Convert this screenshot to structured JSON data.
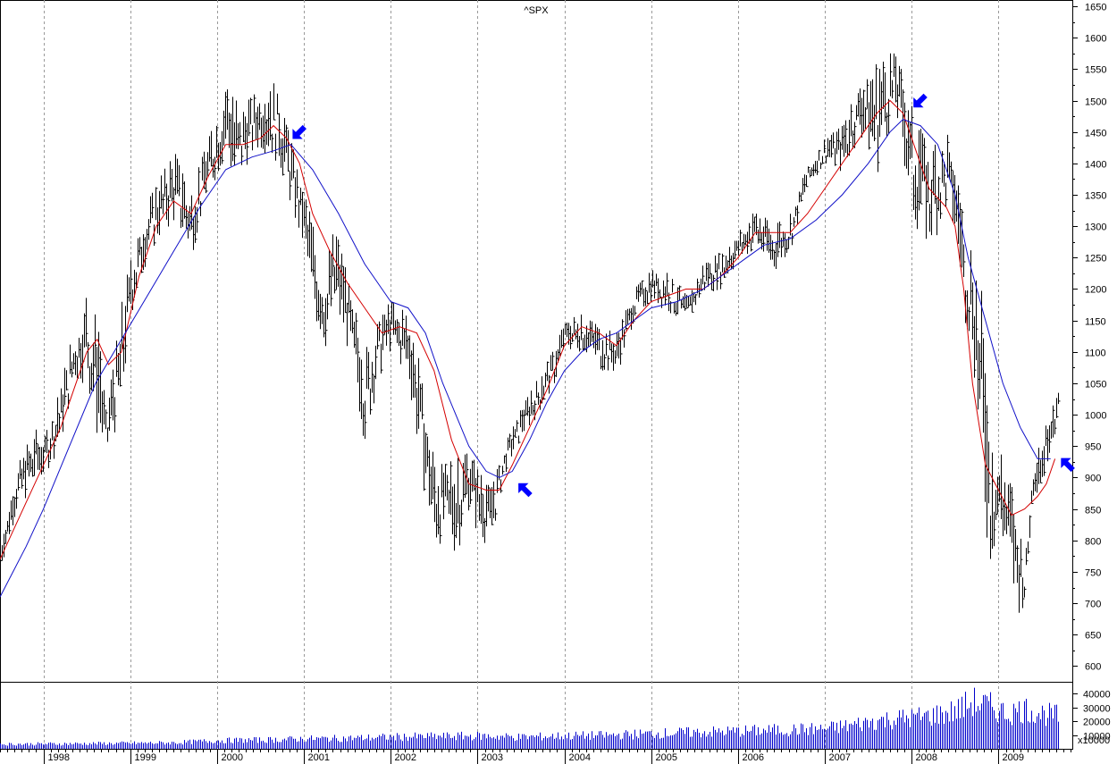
{
  "chart_data": [
    {
      "type": "ohlc",
      "title": "^SPX",
      "x_axis": {
        "tick_labels": [
          "1998",
          "1999",
          "2000",
          "2001",
          "2002",
          "2003",
          "2004",
          "2005",
          "2006",
          "2007",
          "2008",
          "2009"
        ],
        "xlim": [
          1997.5,
          2009.85
        ]
      },
      "y_axis": {
        "tick_labels": [
          "600",
          "650",
          "700",
          "750",
          "800",
          "850",
          "900",
          "950",
          "1000",
          "1050",
          "1100",
          "1150",
          "1200",
          "1250",
          "1300",
          "1350",
          "1400",
          "1450",
          "1500",
          "1550",
          "1600",
          "1650"
        ],
        "ylim": [
          575,
          1660
        ],
        "position": "right"
      },
      "grid": true,
      "series": [
        {
          "kind": "weekly-high-low-bars",
          "color": "#000000",
          "x": [
            1997.5,
            1997.7,
            1997.9,
            1998.0,
            1998.2,
            1998.35,
            1998.5,
            1998.62,
            1998.72,
            1998.9,
            1999.0,
            1999.2,
            1999.35,
            1999.5,
            1999.7,
            1999.85,
            2000.0,
            2000.1,
            2000.2,
            2000.35,
            2000.5,
            2000.7,
            2000.8,
            2000.9,
            2001.0,
            2001.1,
            2001.25,
            2001.35,
            2001.5,
            2001.7,
            2001.85,
            2002.0,
            2002.2,
            2002.35,
            2002.5,
            2002.6,
            2002.75,
            2002.9,
            2003.0,
            2003.15,
            2003.3,
            2003.5,
            2003.7,
            2003.9,
            2004.0,
            2004.2,
            2004.4,
            2004.6,
            2004.8,
            2005.0,
            2005.2,
            2005.4,
            2005.6,
            2005.8,
            2006.0,
            2006.2,
            2006.4,
            2006.6,
            2006.8,
            2007.0,
            2007.2,
            2007.4,
            2007.6,
            2007.8,
            2007.9,
            2008.0,
            2008.2,
            2008.4,
            2008.5,
            2008.6,
            2008.7,
            2008.8,
            2008.9,
            2009.0,
            2009.1,
            2009.2,
            2009.3,
            2009.4,
            2009.5,
            2009.6,
            2009.7
          ],
          "high": [
            800,
            920,
            980,
            960,
            1050,
            1140,
            1190,
            1150,
            1000,
            1180,
            1250,
            1340,
            1380,
            1420,
            1360,
            1420,
            1480,
            1550,
            1500,
            1500,
            1520,
            1530,
            1460,
            1410,
            1360,
            1300,
            1240,
            1300,
            1220,
            1100,
            1160,
            1180,
            1160,
            1070,
            930,
            920,
            930,
            940,
            920,
            880,
            950,
            1010,
            1060,
            1110,
            1150,
            1160,
            1140,
            1130,
            1200,
            1230,
            1230,
            1190,
            1240,
            1260,
            1290,
            1330,
            1300,
            1320,
            1400,
            1440,
            1460,
            1530,
            1560,
            1580,
            1540,
            1490,
            1420,
            1450,
            1400,
            1300,
            1250,
            1200,
            1000,
            950,
            900,
            870,
            760,
            950,
            960,
            1020,
            1050
          ],
          "low": [
            750,
            850,
            880,
            900,
            950,
            1050,
            1050,
            950,
            930,
            1000,
            1150,
            1250,
            1280,
            1300,
            1250,
            1330,
            1380,
            1400,
            1350,
            1400,
            1420,
            1400,
            1350,
            1300,
            1250,
            1150,
            1100,
            1150,
            1100,
            950,
            1050,
            1100,
            1050,
            900,
            780,
            800,
            770,
            850,
            800,
            790,
            900,
            960,
            1000,
            1050,
            1100,
            1100,
            1070,
            1060,
            1150,
            1180,
            1160,
            1140,
            1190,
            1200,
            1240,
            1260,
            1220,
            1260,
            1360,
            1400,
            1380,
            1440,
            1380,
            1480,
            1400,
            1300,
            1260,
            1320,
            1270,
            1150,
            1100,
            850,
            750,
            800,
            760,
            670,
            700,
            870,
            880,
            950,
            980
          ]
        },
        {
          "kind": "moving-average-short",
          "color": "#d40000",
          "x": [
            1997.5,
            1997.8,
            1998.0,
            1998.2,
            1998.5,
            1998.62,
            1998.75,
            1998.9,
            1999.1,
            1999.3,
            1999.5,
            1999.7,
            1999.9,
            2000.1,
            2000.3,
            2000.5,
            2000.65,
            2000.8,
            2000.95,
            2001.1,
            2001.3,
            2001.5,
            2001.7,
            2001.9,
            2002.1,
            2002.3,
            2002.5,
            2002.7,
            2002.9,
            2003.1,
            2003.25,
            2003.4,
            2003.6,
            2003.8,
            2004.0,
            2004.2,
            2004.4,
            2004.6,
            2004.8,
            2005.0,
            2005.2,
            2005.4,
            2005.6,
            2005.8,
            2006.0,
            2006.2,
            2006.4,
            2006.6,
            2006.8,
            2007.0,
            2007.2,
            2007.4,
            2007.6,
            2007.75,
            2007.9,
            2008.05,
            2008.2,
            2008.4,
            2008.5,
            2008.6,
            2008.7,
            2008.85,
            2009.0,
            2009.15,
            2009.3,
            2009.45,
            2009.55,
            2009.65
          ],
          "y": [
            770,
            860,
            920,
            980,
            1100,
            1120,
            1080,
            1100,
            1220,
            1300,
            1340,
            1320,
            1380,
            1430,
            1430,
            1440,
            1460,
            1440,
            1400,
            1320,
            1260,
            1210,
            1170,
            1130,
            1140,
            1130,
            1070,
            960,
            890,
            880,
            880,
            920,
            980,
            1040,
            1110,
            1140,
            1130,
            1110,
            1150,
            1180,
            1190,
            1200,
            1200,
            1220,
            1250,
            1290,
            1290,
            1290,
            1320,
            1360,
            1400,
            1440,
            1480,
            1500,
            1480,
            1420,
            1360,
            1330,
            1300,
            1200,
            1050,
            920,
            880,
            840,
            850,
            870,
            890,
            930
          ]
        },
        {
          "kind": "moving-average-long",
          "color": "#1010c8",
          "x": [
            1997.5,
            1997.8,
            1998.0,
            1998.3,
            1998.6,
            1998.9,
            1999.2,
            1999.5,
            1999.8,
            2000.1,
            2000.4,
            2000.65,
            2000.85,
            2001.1,
            2001.4,
            2001.7,
            2002.0,
            2002.2,
            2002.4,
            2002.6,
            2002.9,
            2003.1,
            2003.25,
            2003.4,
            2003.6,
            2003.8,
            2004.0,
            2004.2,
            2004.4,
            2004.6,
            2004.8,
            2005.0,
            2005.3,
            2005.6,
            2005.9,
            2006.1,
            2006.3,
            2006.6,
            2006.9,
            2007.2,
            2007.5,
            2007.75,
            2007.9,
            2008.1,
            2008.3,
            2008.5,
            2008.65,
            2008.85,
            2009.05,
            2009.25,
            2009.45,
            2009.6
          ],
          "y": [
            710,
            790,
            850,
            950,
            1050,
            1120,
            1190,
            1260,
            1330,
            1390,
            1410,
            1420,
            1430,
            1390,
            1320,
            1240,
            1180,
            1170,
            1130,
            1050,
            950,
            910,
            900,
            910,
            960,
            1020,
            1070,
            1100,
            1120,
            1130,
            1150,
            1170,
            1180,
            1200,
            1230,
            1250,
            1270,
            1280,
            1310,
            1350,
            1400,
            1450,
            1470,
            1460,
            1430,
            1350,
            1250,
            1150,
            1050,
            980,
            930,
            930
          ]
        }
      ],
      "annotations": [
        {
          "kind": "arrow",
          "direction": "down-left",
          "x": 2000.95,
          "y": 1450,
          "color": "#0000ff"
        },
        {
          "kind": "arrow",
          "direction": "up-left",
          "x": 2003.55,
          "y": 880,
          "color": "#0000ff"
        },
        {
          "kind": "arrow",
          "direction": "down-left",
          "x": 2008.1,
          "y": 1500,
          "color": "#0000ff"
        },
        {
          "kind": "arrow",
          "direction": "up-left",
          "x": 2009.8,
          "y": 920,
          "color": "#0000ff"
        }
      ]
    },
    {
      "type": "bar",
      "name": "volume",
      "color": "#0000cc",
      "y_axis": {
        "tick_labels": [
          "10000",
          "20000",
          "30000",
          "40000"
        ],
        "ylim": [
          0,
          48000
        ],
        "multiplier_label": "x10000"
      },
      "x": [
        1997.5,
        1998.0,
        1998.5,
        1999.0,
        1999.5,
        2000.0,
        2000.5,
        2001.0,
        2001.5,
        2002.0,
        2002.5,
        2003.0,
        2003.5,
        2004.0,
        2004.5,
        2005.0,
        2005.5,
        2006.0,
        2006.5,
        2007.0,
        2007.3,
        2007.6,
        2007.9,
        2008.2,
        2008.5,
        2008.7,
        2008.9,
        2009.1,
        2009.3,
        2009.5,
        2009.7
      ],
      "values": [
        4000,
        4200,
        4500,
        4800,
        5200,
        7000,
        7500,
        8500,
        9000,
        10000,
        10500,
        11000,
        10000,
        11000,
        11500,
        13000,
        14000,
        15000,
        16000,
        17000,
        20000,
        24000,
        26000,
        28000,
        32000,
        40000,
        36000,
        30000,
        34000,
        30000,
        28000
      ]
    }
  ]
}
